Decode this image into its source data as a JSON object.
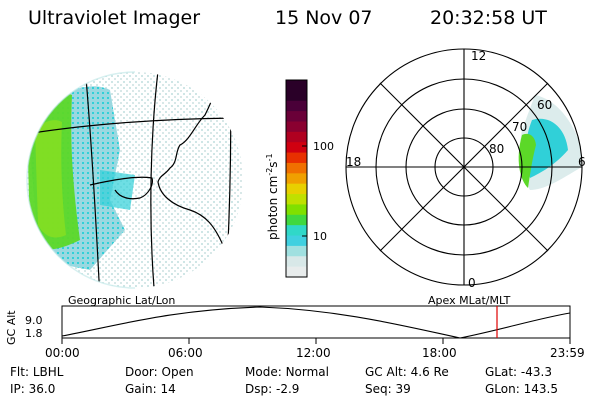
{
  "header": {
    "instrument": "Ultraviolet Imager",
    "date": "15 Nov 07",
    "time": "20:32:58 UT"
  },
  "colorbar": {
    "unit_html": "photon cm<tspan dy=\"-5\" font-size=\"8\">-2</tspan><tspan dy=\"5\">s</tspan><tspan dy=\"-5\" font-size=\"8\">-1</tspan>",
    "ticks": [
      "100",
      "10"
    ],
    "colors": [
      "#2a0028",
      "#2a0028",
      "#4a0038",
      "#6a0038",
      "#8a0030",
      "#b00020",
      "#d00010",
      "#e83000",
      "#f07000",
      "#f0a000",
      "#e8d000",
      "#c0e000",
      "#80e000",
      "#40d840",
      "#30d8c8",
      "#40d0e0",
      "#a0e0e0",
      "#d8e8e8",
      "#e8ecec"
    ]
  },
  "polar": {
    "mlt_labels": [
      "12",
      "18",
      "6",
      "0"
    ],
    "lat_labels": [
      "60",
      "70",
      "80"
    ]
  },
  "orbit": {
    "left_title": "Geographic Lat/Lon",
    "right_title": "Apex MLat/MLT",
    "axis_title": "GC Alt",
    "y_ticks": [
      "9.0",
      "1.8"
    ],
    "x_ticks": [
      "00:00",
      "06:00",
      "12:00",
      "18:00",
      "23:59"
    ],
    "marker_color": "#e00000"
  },
  "status": {
    "row1": [
      {
        "key": "Flt:",
        "value": "LBHL"
      },
      {
        "key": "Door:",
        "value": "Open"
      },
      {
        "key": "Mode:",
        "value": "Normal"
      },
      {
        "key": "GC Alt:",
        "value": "4.6 Re"
      },
      {
        "key": "GLat:",
        "value": "-43.3"
      }
    ],
    "row2": [
      {
        "key": "IP:",
        "value": "36.0"
      },
      {
        "key": "Gain:",
        "value": "14"
      },
      {
        "key": "Dsp:",
        "value": "-2.9"
      },
      {
        "key": "Seq:",
        "value": "39"
      },
      {
        "key": "GLon:",
        "value": "143.5"
      }
    ]
  }
}
